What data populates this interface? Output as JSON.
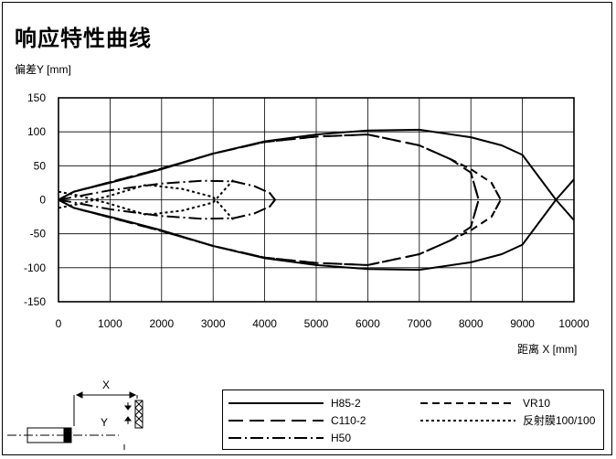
{
  "title": "响应特性曲线",
  "chart_data": {
    "type": "line",
    "ylabel": "偏差Y [mm]",
    "xlabel": "距离 X [mm]",
    "xlim": [
      0,
      10000
    ],
    "ylim": [
      -150,
      150
    ],
    "xticks": [
      0,
      1000,
      2000,
      3000,
      4000,
      5000,
      6000,
      7000,
      8000,
      9000,
      10000
    ],
    "yticks": [
      150,
      100,
      50,
      0,
      -50,
      -100,
      -150
    ],
    "grid": true,
    "series": [
      {
        "name": "H85-2",
        "dash": "solid",
        "x": [
          0,
          300,
          1000,
          2000,
          3000,
          4000,
          5000,
          6000,
          7000,
          8000,
          8600,
          9000,
          9650,
          10000
        ],
        "y": [
          0,
          12,
          25,
          45,
          68,
          86,
          96,
          102,
          103,
          92,
          80,
          66,
          0,
          -30
        ]
      },
      {
        "name": "H85-2",
        "dash": "solid",
        "x": [
          0,
          300,
          1000,
          2000,
          3000,
          4000,
          5000,
          6000,
          7000,
          8000,
          8600,
          9000,
          9650,
          10000
        ],
        "y": [
          0,
          -12,
          -25,
          -45,
          -68,
          -86,
          -96,
          -102,
          -103,
          -92,
          -80,
          -66,
          0,
          30
        ]
      },
      {
        "name": "C110-2",
        "dash": "longdash",
        "x": [
          0,
          300,
          1000,
          2000,
          3000,
          4000,
          5000,
          6000,
          7000,
          7600,
          8000,
          8150,
          8000
        ],
        "y": [
          0,
          12,
          26,
          46,
          68,
          85,
          93,
          96,
          80,
          60,
          40,
          0,
          -40
        ]
      },
      {
        "name": "C110-2",
        "dash": "longdash",
        "x": [
          0,
          300,
          1000,
          2000,
          3000,
          4000,
          5000,
          6000,
          7000,
          7600,
          8000,
          8150,
          8000
        ],
        "y": [
          0,
          -12,
          -26,
          -46,
          -68,
          -85,
          -93,
          -96,
          -80,
          -60,
          -40,
          0,
          40
        ]
      },
      {
        "name": "VR10",
        "dash": "dash",
        "x": [
          0,
          300,
          1000,
          2000,
          3000,
          4000,
          5000,
          6000,
          7000,
          7600,
          8000,
          8400,
          8580,
          8400
        ],
        "y": [
          0,
          12,
          26,
          46,
          68,
          85,
          93,
          96,
          80,
          60,
          45,
          25,
          0,
          -25
        ]
      },
      {
        "name": "VR10",
        "dash": "dash",
        "x": [
          0,
          300,
          1000,
          2000,
          3000,
          4000,
          5000,
          6000,
          7000,
          7600,
          8000,
          8400,
          8580,
          8400
        ],
        "y": [
          0,
          -12,
          -26,
          -46,
          -68,
          -85,
          -93,
          -96,
          -80,
          -60,
          -45,
          -25,
          0,
          25
        ]
      },
      {
        "name": "H50",
        "dash": "dashdot",
        "x": [
          0,
          300,
          1000,
          2000,
          2800,
          3400,
          3800,
          4100,
          4200,
          4100
        ],
        "y": [
          0,
          4,
          14,
          24,
          28,
          27,
          20,
          10,
          0,
          -10
        ]
      },
      {
        "name": "H50",
        "dash": "dashdot",
        "x": [
          0,
          300,
          1000,
          2000,
          2800,
          3400,
          3800,
          4100,
          4200,
          4100
        ],
        "y": [
          0,
          -4,
          -14,
          -24,
          -28,
          -27,
          -20,
          -10,
          0,
          10
        ]
      },
      {
        "name": "反射膜100/100",
        "dash": "dot",
        "x": [
          0,
          400,
          1000,
          1700,
          2400,
          3000,
          3400
        ],
        "y": [
          12,
          6,
          -6,
          -22,
          -16,
          -4,
          30
        ]
      },
      {
        "name": "反射膜100/100",
        "dash": "dot",
        "x": [
          0,
          400,
          1000,
          1700,
          2400,
          3000,
          3400
        ],
        "y": [
          -12,
          -6,
          6,
          22,
          16,
          4,
          -30
        ]
      }
    ],
    "legend": [
      {
        "name": "H85-2",
        "dash": "solid"
      },
      {
        "name": "VR10",
        "dash": "dash"
      },
      {
        "name": "C110-2",
        "dash": "longdash"
      },
      {
        "name": "反射膜100/100",
        "dash": "dot"
      },
      {
        "name": "H50",
        "dash": "dashdot"
      }
    ]
  },
  "diagram": {
    "x_label": "X",
    "y_label": "Y"
  }
}
